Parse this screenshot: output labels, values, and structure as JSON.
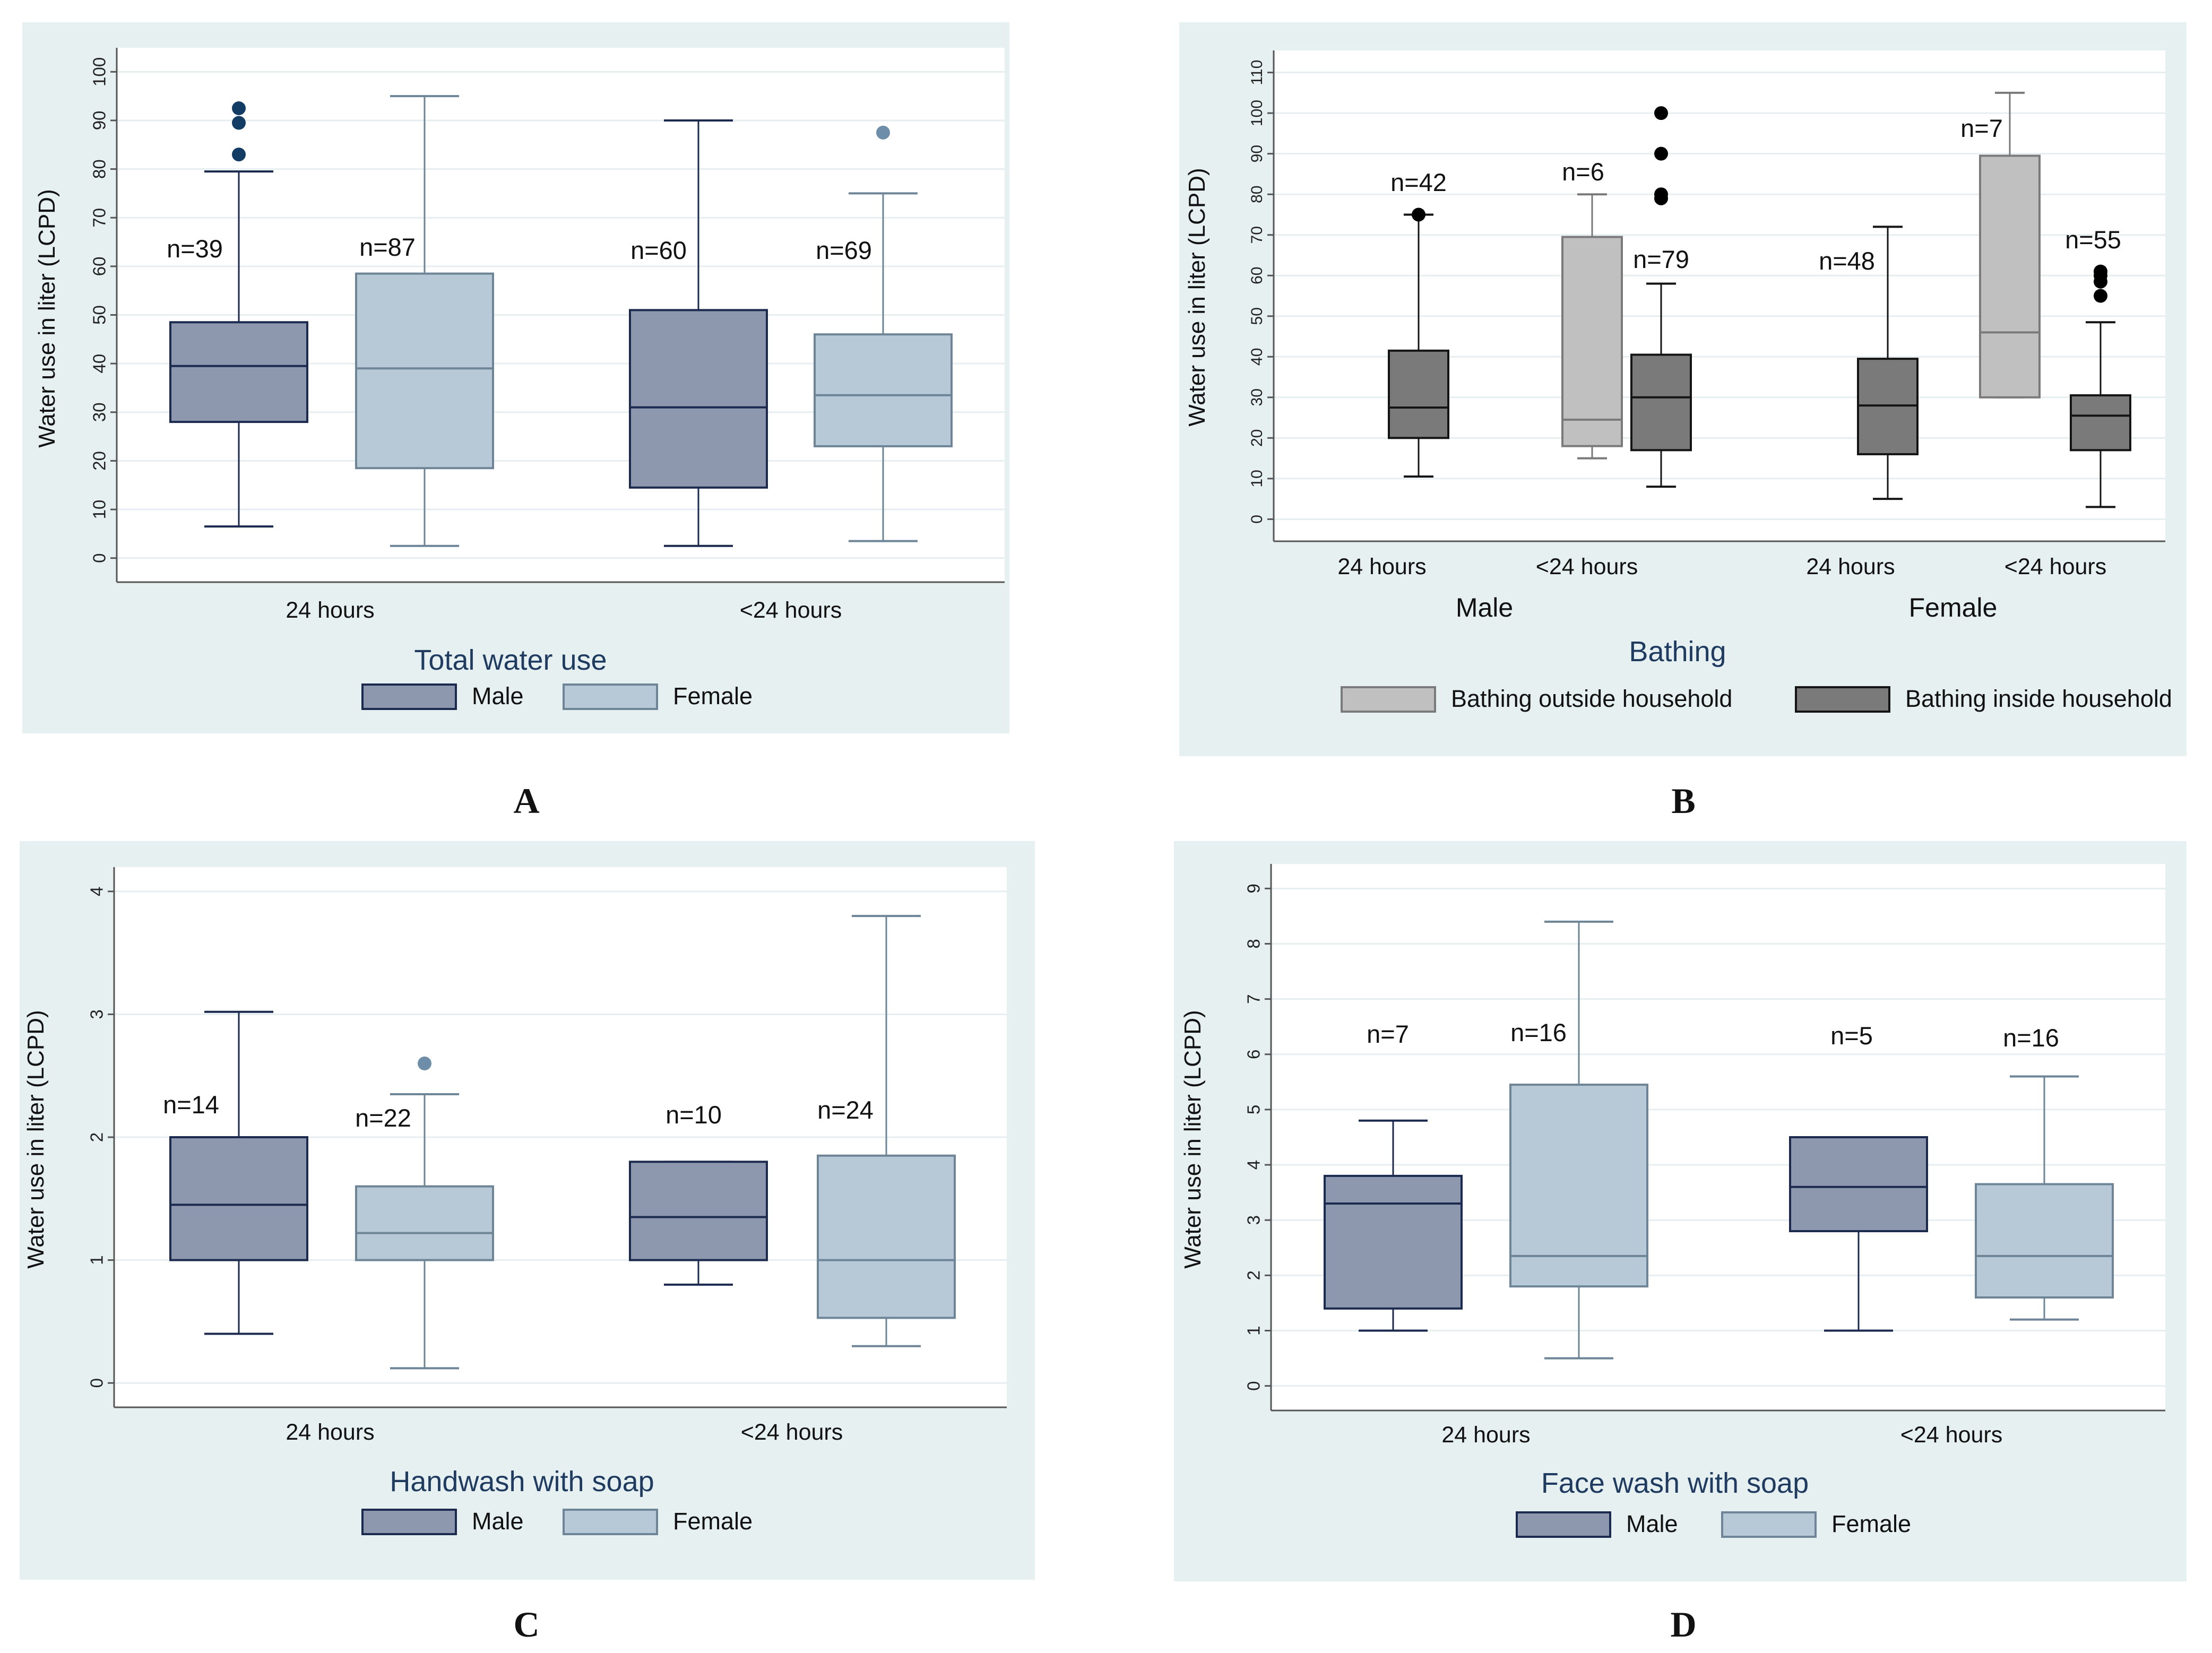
{
  "colors": {
    "panel_bg": "#e6f0f0",
    "plot_bg": "#ffffff",
    "grid": "#e6eef0",
    "axis": "#555555",
    "male_fill": "#8d97ad",
    "male_line": "#1b2a4e",
    "female_fill": "#b7c9d6",
    "female_line": "#6d8596",
    "out_fill": "#c0c0c0",
    "out_line": "#7a7a7a",
    "in_fill": "#7a7a7a",
    "in_line": "#141414",
    "male_outlier": "#123c63",
    "female_outlier": "#6d8da8",
    "black_outlier": "#000000",
    "title_color": "#1f3b60"
  },
  "chart_data": [
    {
      "panel": "A",
      "type": "box",
      "title": "Total water use",
      "ylabel": "Water use in liter (LCPD)",
      "ylim": [
        0,
        100
      ],
      "yticks": [
        "0",
        "10",
        "20",
        "30",
        "40",
        "50",
        "60",
        "70",
        "80",
        "90",
        "100"
      ],
      "groups": [
        "24 hours",
        "<24 hours"
      ],
      "legend": [
        "Male",
        "Female"
      ],
      "boxes": [
        {
          "group": "24 hours",
          "series": "Male",
          "n": "n=39",
          "min": 6.5,
          "q1": 28,
          "median": 39.5,
          "q3": 48.5,
          "max": 79.5,
          "outliers": [
            83,
            89.5,
            92.5
          ]
        },
        {
          "group": "24 hours",
          "series": "Female",
          "n": "n=87",
          "min": 2.5,
          "q1": 18.5,
          "median": 39,
          "q3": 58.5,
          "max": 95,
          "outliers": []
        },
        {
          "group": "<24 hours",
          "series": "Male",
          "n": "n=60",
          "min": 2.5,
          "q1": 14.5,
          "median": 31,
          "q3": 51,
          "max": 90,
          "outliers": []
        },
        {
          "group": "<24 hours",
          "series": "Female",
          "n": "n=69",
          "min": 3.5,
          "q1": 23,
          "median": 33.5,
          "q3": 46,
          "max": 75,
          "outliers": [
            87.5
          ]
        }
      ]
    },
    {
      "panel": "B",
      "type": "box",
      "title": "Bathing",
      "ylabel": "Water use in liter (LCPD)",
      "ylim": [
        0,
        110
      ],
      "yticks": [
        "0",
        "10",
        "20",
        "30",
        "40",
        "50",
        "60",
        "70",
        "80",
        "90",
        "100",
        "110"
      ],
      "groups": [
        "Male",
        "Female"
      ],
      "subgroups": [
        "24 hours",
        "<24 hours",
        "24 hours",
        "<24 hours"
      ],
      "legend": [
        "Bathing outside household",
        "Bathing inside household"
      ],
      "boxes": [
        {
          "group": "Male",
          "sub": "24 hours",
          "series": "Bathing inside household",
          "n": "n=42",
          "min": 10.5,
          "q1": 20,
          "median": 27.5,
          "q3": 41.5,
          "max": 75,
          "outliers": [
            75
          ]
        },
        {
          "group": "Male",
          "sub": "<24 hours",
          "series": "Bathing outside household",
          "n": "n=6",
          "min": 15,
          "q1": 18,
          "median": 24.5,
          "q3": 69.5,
          "max": 80,
          "outliers": []
        },
        {
          "group": "Male",
          "sub": "<24 hours",
          "series": "Bathing inside household",
          "n": "n=79",
          "min": 8,
          "q1": 17,
          "median": 30,
          "q3": 40.5,
          "max": 58,
          "outliers": [
            79,
            80,
            90,
            100
          ]
        },
        {
          "group": "Female",
          "sub": "24 hours",
          "series": "Bathing inside household",
          "n": "n=48",
          "min": 5,
          "q1": 16,
          "median": 28,
          "q3": 39.5,
          "max": 72,
          "outliers": []
        },
        {
          "group": "Female",
          "sub": "<24 hours",
          "series": "Bathing outside household",
          "n": "n=7",
          "min": 30,
          "q1": 30,
          "median": 46,
          "q3": 89.5,
          "max": 105,
          "outliers": []
        },
        {
          "group": "Female",
          "sub": "<24 hours",
          "series": "Bathing inside household",
          "n": "n=55",
          "min": 3,
          "q1": 17,
          "median": 25.5,
          "q3": 30.5,
          "max": 48.5,
          "outliers": [
            55,
            58.5,
            60,
            61
          ]
        }
      ]
    },
    {
      "panel": "C",
      "type": "box",
      "title": "Handwash with soap",
      "ylabel": "Water use in liter (LCPD)",
      "ylim": [
        0,
        4
      ],
      "yticks": [
        "0",
        "1",
        "2",
        "3",
        "4"
      ],
      "groups": [
        "24 hours",
        "<24 hours"
      ],
      "legend": [
        "Male",
        "Female"
      ],
      "boxes": [
        {
          "group": "24 hours",
          "series": "Male",
          "n": "n=14",
          "min": 0.4,
          "q1": 1,
          "median": 1.45,
          "q3": 2,
          "max": 3.02,
          "outliers": []
        },
        {
          "group": "24 hours",
          "series": "Female",
          "n": "n=22",
          "min": 0.12,
          "q1": 1,
          "median": 1.22,
          "q3": 1.6,
          "max": 2.35,
          "outliers": [
            2.6
          ]
        },
        {
          "group": "<24 hours",
          "series": "Male",
          "n": "n=10",
          "min": 0.8,
          "q1": 1,
          "median": 1.35,
          "q3": 1.8,
          "max": 1.8,
          "outliers": []
        },
        {
          "group": "<24 hours",
          "series": "Female",
          "n": "n=24",
          "min": 0.3,
          "q1": 0.53,
          "median": 1,
          "q3": 1.85,
          "max": 3.8,
          "outliers": []
        }
      ]
    },
    {
      "panel": "D",
      "type": "box",
      "title": "Face wash with soap",
      "ylabel": "Water use in liter (LCPD)",
      "ylim": [
        0,
        9
      ],
      "yticks": [
        "0",
        "1",
        "2",
        "3",
        "4",
        "5",
        "6",
        "7",
        "8",
        "9"
      ],
      "groups": [
        "24 hours",
        "<24 hours"
      ],
      "legend": [
        "Male",
        "Female"
      ],
      "boxes": [
        {
          "group": "24 hours",
          "series": "Male",
          "n": "n=7",
          "min": 1,
          "q1": 1.4,
          "median": 3.3,
          "q3": 3.8,
          "max": 4.8,
          "outliers": []
        },
        {
          "group": "24 hours",
          "series": "Female",
          "n": "n=16",
          "min": 0.5,
          "q1": 1.8,
          "median": 2.35,
          "q3": 5.45,
          "max": 8.4,
          "outliers": []
        },
        {
          "group": "<24 hours",
          "series": "Male",
          "n": "n=5",
          "min": 1,
          "q1": 2.8,
          "median": 3.6,
          "q3": 4.5,
          "max": 4.5,
          "outliers": []
        },
        {
          "group": "<24 hours",
          "series": "Female",
          "n": "n=16",
          "min": 1.2,
          "q1": 1.6,
          "median": 2.35,
          "q3": 3.65,
          "max": 5.6,
          "outliers": []
        }
      ]
    }
  ],
  "panel_labels": [
    "A",
    "B",
    "C",
    "D"
  ]
}
